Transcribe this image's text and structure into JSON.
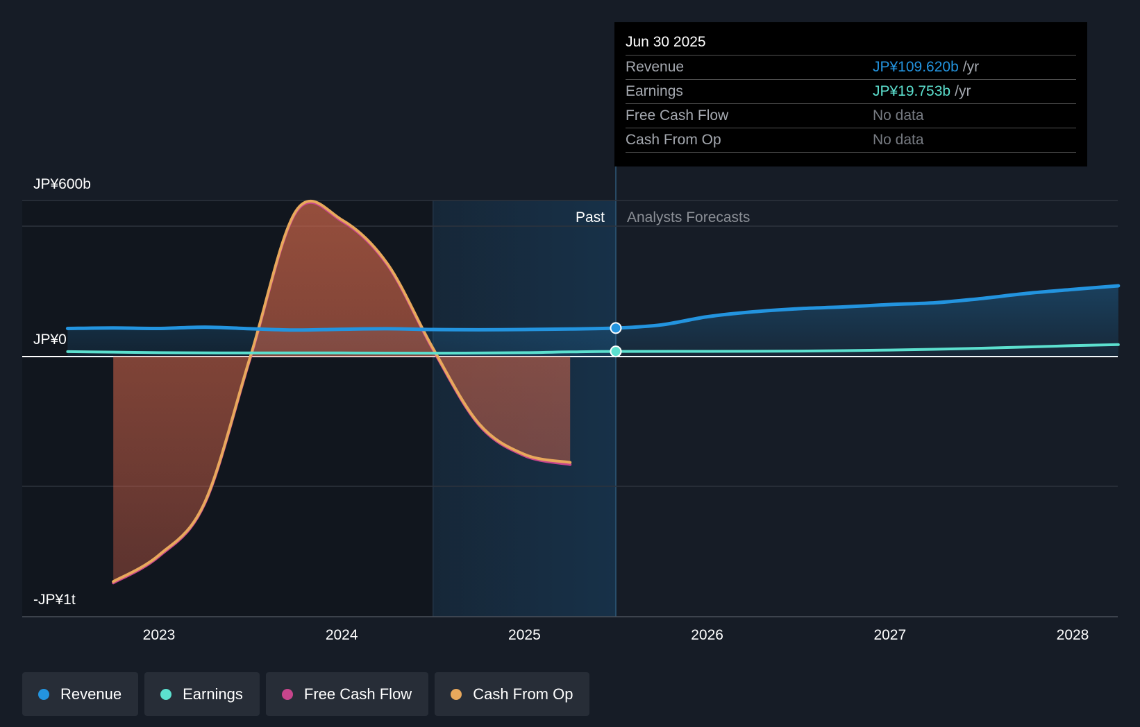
{
  "chart_data": {
    "type": "area",
    "y_axis": {
      "labels": [
        "JP¥600b",
        "JP¥0",
        "-JP¥1t"
      ],
      "min_label_value": -1000,
      "max_label_value": 600,
      "unit": "JP¥ billions"
    },
    "x_axis": {
      "ticks": [
        "2023",
        "2024",
        "2025",
        "2026",
        "2027",
        "2028"
      ]
    },
    "regions": {
      "past_label": "Past",
      "forecast_label": "Analysts Forecasts",
      "divider_date": "Jun 30 2025"
    },
    "series": [
      {
        "name": "Revenue",
        "color": "#2394df",
        "fill": true,
        "points": [
          [
            2022.5,
            108
          ],
          [
            2022.75,
            110
          ],
          [
            2023.0,
            108
          ],
          [
            2023.25,
            113
          ],
          [
            2023.5,
            107
          ],
          [
            2023.75,
            102
          ],
          [
            2024.0,
            105
          ],
          [
            2024.25,
            107
          ],
          [
            2024.5,
            104
          ],
          [
            2024.75,
            103
          ],
          [
            2025.0,
            104
          ],
          [
            2025.25,
            106
          ],
          [
            2025.5,
            109.62
          ],
          [
            2025.75,
            122
          ],
          [
            2026.0,
            153
          ],
          [
            2026.25,
            172
          ],
          [
            2026.5,
            184
          ],
          [
            2026.75,
            191
          ],
          [
            2027.0,
            200
          ],
          [
            2027.25,
            207
          ],
          [
            2027.5,
            223
          ],
          [
            2027.75,
            243
          ],
          [
            2028.0,
            258
          ],
          [
            2028.25,
            272
          ]
        ]
      },
      {
        "name": "Earnings",
        "color": "#5ce0cf",
        "fill": false,
        "points": [
          [
            2022.5,
            19
          ],
          [
            2022.75,
            17
          ],
          [
            2023.0,
            15
          ],
          [
            2023.5,
            14
          ],
          [
            2024.0,
            14
          ],
          [
            2024.5,
            13
          ],
          [
            2025.0,
            15
          ],
          [
            2025.25,
            18
          ],
          [
            2025.5,
            19.753
          ],
          [
            2026.0,
            20
          ],
          [
            2026.5,
            21
          ],
          [
            2027.0,
            25
          ],
          [
            2027.5,
            32
          ],
          [
            2028.0,
            42
          ],
          [
            2028.25,
            46
          ]
        ]
      },
      {
        "name": "Free Cash Flow",
        "color": "#c7458c",
        "fill": true,
        "points": [
          [
            2022.75,
            -870
          ],
          [
            2023.0,
            -768
          ],
          [
            2023.25,
            -566
          ],
          [
            2023.5,
            -5
          ],
          [
            2023.75,
            555
          ],
          [
            2024.0,
            521
          ],
          [
            2024.25,
            352
          ],
          [
            2024.5,
            26
          ],
          [
            2024.75,
            -262
          ],
          [
            2025.0,
            -381
          ],
          [
            2025.25,
            -415
          ]
        ]
      },
      {
        "name": "Cash From Op",
        "color": "#e8a85c",
        "fill": true,
        "points": [
          [
            2022.75,
            -865
          ],
          [
            2023.0,
            -763
          ],
          [
            2023.25,
            -561
          ],
          [
            2023.5,
            0
          ],
          [
            2023.75,
            560
          ],
          [
            2024.0,
            526
          ],
          [
            2024.25,
            357
          ],
          [
            2024.5,
            31
          ],
          [
            2024.75,
            -257
          ],
          [
            2025.0,
            -376
          ],
          [
            2025.25,
            -407
          ]
        ]
      }
    ]
  },
  "tooltip": {
    "date": "Jun 30 2025",
    "rows": [
      {
        "label": "Revenue",
        "value": "JP¥109.620b",
        "unit": "/yr",
        "color": "#2394df"
      },
      {
        "label": "Earnings",
        "value": "JP¥19.753b",
        "unit": "/yr",
        "color": "#5ce0cf"
      },
      {
        "label": "Free Cash Flow",
        "value": "No data",
        "unit": "",
        "color": ""
      },
      {
        "label": "Cash From Op",
        "value": "No data",
        "unit": "",
        "color": ""
      }
    ]
  },
  "legend": [
    {
      "label": "Revenue",
      "color": "#2394df"
    },
    {
      "label": "Earnings",
      "color": "#5ce0cf"
    },
    {
      "label": "Free Cash Flow",
      "color": "#c7458c"
    },
    {
      "label": "Cash From Op",
      "color": "#e8a85c"
    }
  ]
}
